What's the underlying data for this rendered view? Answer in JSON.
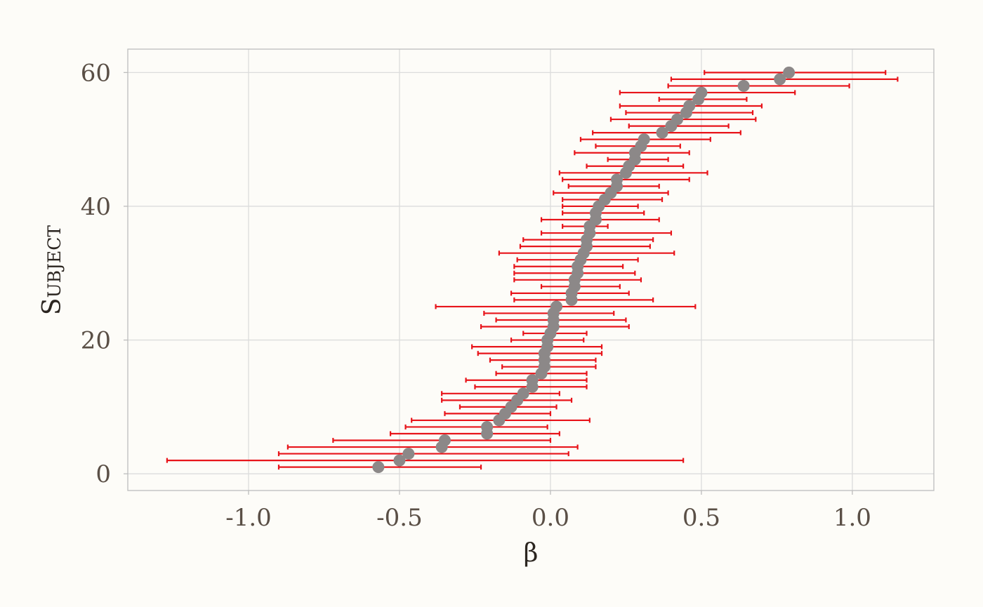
{
  "chart_data": {
    "type": "scatter",
    "xlabel": "β",
    "ylabel": "Subject",
    "xlim": [
      -1.4,
      1.27
    ],
    "ylim": [
      -2.5,
      63.5
    ],
    "x_ticks": [
      -1.0,
      -0.5,
      0.0,
      0.5,
      1.0
    ],
    "x_tick_labels": [
      "-1.0",
      "-0.5",
      "0.0",
      "0.5",
      "1.0"
    ],
    "y_ticks": [
      0,
      20,
      40,
      60
    ],
    "y_tick_labels": [
      "0",
      "20",
      "40",
      "60"
    ],
    "grid": true,
    "colors": {
      "point": "#8c8888",
      "error_bar": "#e8141a",
      "background": "#fdfcf8"
    },
    "points": [
      {
        "subject": 1,
        "estimate": -0.57,
        "lower": -0.9,
        "upper": -0.23
      },
      {
        "subject": 2,
        "estimate": -0.5,
        "lower": -1.27,
        "upper": 0.44
      },
      {
        "subject": 3,
        "estimate": -0.47,
        "lower": -0.9,
        "upper": 0.06
      },
      {
        "subject": 4,
        "estimate": -0.36,
        "lower": -0.87,
        "upper": 0.09
      },
      {
        "subject": 5,
        "estimate": -0.35,
        "lower": -0.72,
        "upper": 0.0
      },
      {
        "subject": 6,
        "estimate": -0.21,
        "lower": -0.53,
        "upper": 0.03
      },
      {
        "subject": 7,
        "estimate": -0.21,
        "lower": -0.48,
        "upper": -0.01
      },
      {
        "subject": 8,
        "estimate": -0.17,
        "lower": -0.46,
        "upper": 0.13
      },
      {
        "subject": 9,
        "estimate": -0.15,
        "lower": -0.35,
        "upper": 0.0
      },
      {
        "subject": 10,
        "estimate": -0.13,
        "lower": -0.3,
        "upper": 0.02
      },
      {
        "subject": 11,
        "estimate": -0.11,
        "lower": -0.36,
        "upper": 0.07
      },
      {
        "subject": 12,
        "estimate": -0.09,
        "lower": -0.36,
        "upper": 0.03
      },
      {
        "subject": 13,
        "estimate": -0.06,
        "lower": -0.25,
        "upper": 0.12
      },
      {
        "subject": 14,
        "estimate": -0.06,
        "lower": -0.28,
        "upper": 0.12
      },
      {
        "subject": 15,
        "estimate": -0.03,
        "lower": -0.18,
        "upper": 0.12
      },
      {
        "subject": 16,
        "estimate": -0.02,
        "lower": -0.16,
        "upper": 0.15
      },
      {
        "subject": 17,
        "estimate": -0.02,
        "lower": -0.2,
        "upper": 0.15
      },
      {
        "subject": 18,
        "estimate": -0.02,
        "lower": -0.24,
        "upper": 0.17
      },
      {
        "subject": 19,
        "estimate": -0.01,
        "lower": -0.26,
        "upper": 0.17
      },
      {
        "subject": 20,
        "estimate": -0.01,
        "lower": -0.13,
        "upper": 0.11
      },
      {
        "subject": 21,
        "estimate": 0.0,
        "lower": -0.09,
        "upper": 0.12
      },
      {
        "subject": 22,
        "estimate": 0.01,
        "lower": -0.23,
        "upper": 0.26
      },
      {
        "subject": 23,
        "estimate": 0.01,
        "lower": -0.18,
        "upper": 0.25
      },
      {
        "subject": 24,
        "estimate": 0.01,
        "lower": -0.22,
        "upper": 0.21
      },
      {
        "subject": 25,
        "estimate": 0.02,
        "lower": -0.38,
        "upper": 0.48
      },
      {
        "subject": 26,
        "estimate": 0.07,
        "lower": -0.12,
        "upper": 0.34
      },
      {
        "subject": 27,
        "estimate": 0.07,
        "lower": -0.13,
        "upper": 0.26
      },
      {
        "subject": 28,
        "estimate": 0.08,
        "lower": -0.03,
        "upper": 0.23
      },
      {
        "subject": 29,
        "estimate": 0.08,
        "lower": -0.12,
        "upper": 0.3
      },
      {
        "subject": 30,
        "estimate": 0.09,
        "lower": -0.12,
        "upper": 0.28
      },
      {
        "subject": 31,
        "estimate": 0.09,
        "lower": -0.12,
        "upper": 0.24
      },
      {
        "subject": 32,
        "estimate": 0.1,
        "lower": -0.11,
        "upper": 0.29
      },
      {
        "subject": 33,
        "estimate": 0.11,
        "lower": -0.17,
        "upper": 0.41
      },
      {
        "subject": 34,
        "estimate": 0.12,
        "lower": -0.1,
        "upper": 0.33
      },
      {
        "subject": 35,
        "estimate": 0.12,
        "lower": -0.09,
        "upper": 0.34
      },
      {
        "subject": 36,
        "estimate": 0.13,
        "lower": -0.03,
        "upper": 0.4
      },
      {
        "subject": 37,
        "estimate": 0.13,
        "lower": 0.04,
        "upper": 0.19
      },
      {
        "subject": 38,
        "estimate": 0.15,
        "lower": -0.03,
        "upper": 0.36
      },
      {
        "subject": 39,
        "estimate": 0.15,
        "lower": 0.04,
        "upper": 0.31
      },
      {
        "subject": 40,
        "estimate": 0.16,
        "lower": 0.04,
        "upper": 0.29
      },
      {
        "subject": 41,
        "estimate": 0.18,
        "lower": 0.04,
        "upper": 0.37
      },
      {
        "subject": 42,
        "estimate": 0.2,
        "lower": 0.01,
        "upper": 0.39
      },
      {
        "subject": 43,
        "estimate": 0.22,
        "lower": 0.06,
        "upper": 0.36
      },
      {
        "subject": 44,
        "estimate": 0.22,
        "lower": 0.04,
        "upper": 0.46
      },
      {
        "subject": 45,
        "estimate": 0.25,
        "lower": 0.03,
        "upper": 0.52
      },
      {
        "subject": 46,
        "estimate": 0.26,
        "lower": 0.12,
        "upper": 0.44
      },
      {
        "subject": 47,
        "estimate": 0.28,
        "lower": 0.19,
        "upper": 0.39
      },
      {
        "subject": 48,
        "estimate": 0.28,
        "lower": 0.08,
        "upper": 0.46
      },
      {
        "subject": 49,
        "estimate": 0.3,
        "lower": 0.15,
        "upper": 0.43
      },
      {
        "subject": 50,
        "estimate": 0.31,
        "lower": 0.1,
        "upper": 0.53
      },
      {
        "subject": 51,
        "estimate": 0.37,
        "lower": 0.14,
        "upper": 0.63
      },
      {
        "subject": 52,
        "estimate": 0.4,
        "lower": 0.26,
        "upper": 0.59
      },
      {
        "subject": 53,
        "estimate": 0.42,
        "lower": 0.2,
        "upper": 0.68
      },
      {
        "subject": 54,
        "estimate": 0.45,
        "lower": 0.25,
        "upper": 0.67
      },
      {
        "subject": 55,
        "estimate": 0.46,
        "lower": 0.23,
        "upper": 0.7
      },
      {
        "subject": 56,
        "estimate": 0.49,
        "lower": 0.36,
        "upper": 0.65
      },
      {
        "subject": 57,
        "estimate": 0.5,
        "lower": 0.23,
        "upper": 0.81
      },
      {
        "subject": 58,
        "estimate": 0.64,
        "lower": 0.39,
        "upper": 0.99
      },
      {
        "subject": 59,
        "estimate": 0.76,
        "lower": 0.4,
        "upper": 1.15
      },
      {
        "subject": 60,
        "estimate": 0.79,
        "lower": 0.51,
        "upper": 1.11
      }
    ]
  }
}
